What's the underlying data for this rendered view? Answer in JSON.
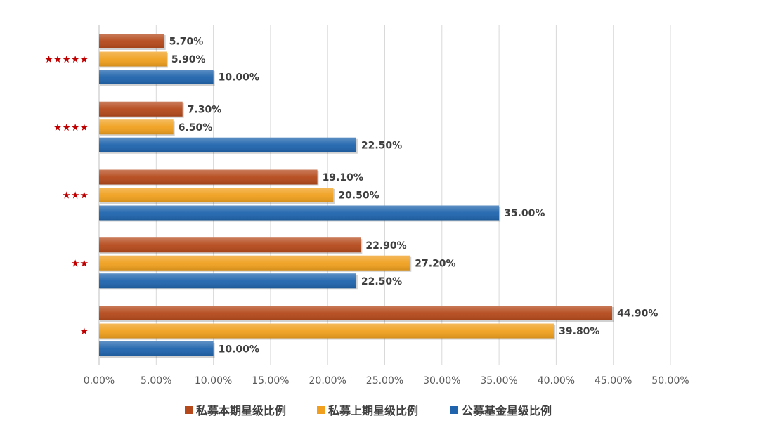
{
  "chart_data": {
    "type": "bar",
    "orientation": "horizontal",
    "categories": [
      "★★★★★",
      "★★★★",
      "★★★",
      "★★",
      "★"
    ],
    "series": [
      {
        "name": "私募本期星级比例",
        "color": "#b5491b",
        "values": [
          5.7,
          7.3,
          19.1,
          22.9,
          44.9
        ],
        "labels": [
          "5.70%",
          "7.30%",
          "19.10%",
          "22.90%",
          "44.90%"
        ]
      },
      {
        "name": "私募上期星级比例",
        "color": "#f0a01e",
        "values": [
          5.9,
          6.5,
          20.5,
          27.2,
          39.8
        ],
        "labels": [
          "5.90%",
          "6.50%",
          "20.50%",
          "27.20%",
          "39.80%"
        ]
      },
      {
        "name": "公募基金星级比例",
        "color": "#1f64ad",
        "values": [
          10.0,
          22.5,
          35.0,
          22.5,
          10.0
        ],
        "labels": [
          "10.00%",
          "22.50%",
          "35.00%",
          "22.50%",
          "10.00%"
        ]
      }
    ],
    "xlim": [
      0,
      50
    ],
    "xticks": [
      "0.00%",
      "5.00%",
      "10.00%",
      "15.00%",
      "20.00%",
      "25.00%",
      "30.00%",
      "35.00%",
      "40.00%",
      "45.00%",
      "50.00%"
    ],
    "grid": "vertical",
    "legend": "bottom",
    "category_label_color": "#c00000",
    "title": "",
    "xlabel": "",
    "ylabel": ""
  }
}
